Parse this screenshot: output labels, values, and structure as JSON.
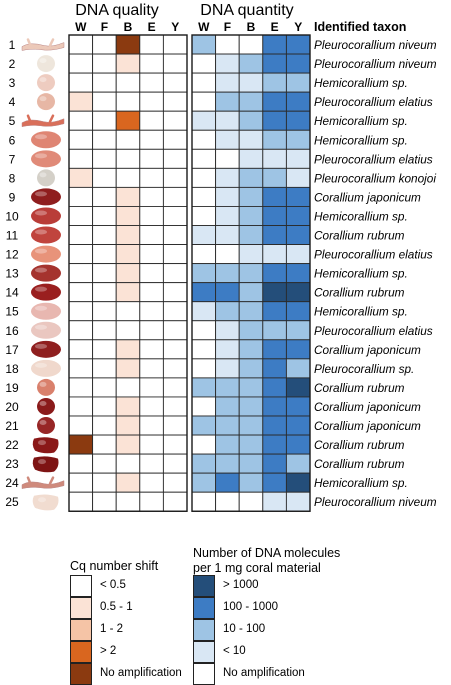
{
  "chart_data": [
    {
      "type": "heatmap",
      "title": "DNA quality",
      "columns": [
        "W",
        "F",
        "B",
        "E",
        "Y"
      ],
      "rows": [
        "1",
        "2",
        "3",
        "4",
        "5",
        "6",
        "7",
        "8",
        "9",
        "10",
        "11",
        "12",
        "13",
        "14",
        "15",
        "16",
        "17",
        "18",
        "19",
        "20",
        "21",
        "22",
        "23",
        "24",
        "25"
      ],
      "values": [
        [
          0,
          0,
          4,
          0,
          0
        ],
        [
          0,
          0,
          1,
          0,
          0
        ],
        [
          0,
          0,
          0,
          0,
          0
        ],
        [
          1,
          0,
          0,
          0,
          0
        ],
        [
          0,
          0,
          3,
          0,
          0
        ],
        [
          0,
          0,
          0,
          0,
          0
        ],
        [
          0,
          0,
          0,
          0,
          0
        ],
        [
          1,
          0,
          0,
          0,
          0
        ],
        [
          0,
          0,
          1,
          0,
          0
        ],
        [
          0,
          0,
          1,
          0,
          0
        ],
        [
          0,
          0,
          1,
          0,
          0
        ],
        [
          0,
          0,
          1,
          0,
          0
        ],
        [
          0,
          0,
          1,
          0,
          0
        ],
        [
          0,
          0,
          1,
          0,
          0
        ],
        [
          0,
          0,
          0,
          0,
          0
        ],
        [
          0,
          0,
          0,
          0,
          0
        ],
        [
          0,
          0,
          1,
          0,
          0
        ],
        [
          0,
          0,
          1,
          0,
          0
        ],
        [
          0,
          0,
          0,
          0,
          0
        ],
        [
          0,
          0,
          1,
          0,
          0
        ],
        [
          0,
          0,
          1,
          0,
          0
        ],
        [
          4,
          0,
          1,
          0,
          0
        ],
        [
          0,
          0,
          0,
          0,
          0
        ],
        [
          0,
          0,
          1,
          0,
          0
        ],
        [
          0,
          0,
          0,
          0,
          0
        ]
      ],
      "value_levels": [
        "< 0.5",
        "0.5 - 1",
        "1 - 2",
        "> 2",
        "No amplification"
      ],
      "colors": [
        "#ffffff",
        "#fbe3d6",
        "#f5c4a6",
        "#d9661f",
        "#8b3a10"
      ],
      "legend_title": "Cq number shift"
    },
    {
      "type": "heatmap",
      "title": "DNA quantity",
      "columns": [
        "W",
        "F",
        "B",
        "E",
        "Y"
      ],
      "rows": [
        "1",
        "2",
        "3",
        "4",
        "5",
        "6",
        "7",
        "8",
        "9",
        "10",
        "11",
        "12",
        "13",
        "14",
        "15",
        "16",
        "17",
        "18",
        "19",
        "20",
        "21",
        "22",
        "23",
        "24",
        "25"
      ],
      "values": [
        [
          2,
          0,
          0,
          3,
          3
        ],
        [
          0,
          1,
          2,
          3,
          3
        ],
        [
          0,
          1,
          1,
          2,
          2
        ],
        [
          0,
          2,
          2,
          3,
          3
        ],
        [
          1,
          1,
          2,
          3,
          3
        ],
        [
          0,
          1,
          1,
          2,
          2
        ],
        [
          0,
          0,
          1,
          1,
          1
        ],
        [
          0,
          1,
          2,
          2,
          1
        ],
        [
          0,
          1,
          2,
          3,
          3
        ],
        [
          0,
          1,
          2,
          3,
          3
        ],
        [
          1,
          1,
          2,
          3,
          3
        ],
        [
          0,
          0,
          1,
          1,
          1
        ],
        [
          2,
          2,
          2,
          3,
          3
        ],
        [
          3,
          3,
          2,
          4,
          4
        ],
        [
          1,
          2,
          2,
          3,
          3
        ],
        [
          0,
          1,
          2,
          2,
          2
        ],
        [
          0,
          1,
          2,
          3,
          3
        ],
        [
          0,
          1,
          2,
          3,
          2
        ],
        [
          2,
          2,
          2,
          3,
          4
        ],
        [
          0,
          2,
          2,
          3,
          3
        ],
        [
          2,
          2,
          2,
          3,
          3
        ],
        [
          0,
          2,
          2,
          3,
          3
        ],
        [
          2,
          2,
          2,
          3,
          2
        ],
        [
          2,
          3,
          2,
          3,
          4
        ],
        [
          0,
          0,
          0,
          1,
          1
        ]
      ],
      "value_levels": [
        "No amplification",
        "< 10",
        "10 - 100",
        "100 - 1000",
        "> 1000"
      ],
      "colors": [
        "#ffffff",
        "#d9e7f4",
        "#9ec4e4",
        "#3d7cc4",
        "#244e7a"
      ],
      "legend_title_lines": [
        "Number of DNA molecules",
        "per 1 mg coral material"
      ]
    }
  ],
  "taxon_header": "Identified taxon",
  "taxa": [
    "Pleurocorallium niveum",
    "Pleurocorallium niveum",
    "Hemicorallium sp.",
    "Pleurocorallium elatius",
    "Hemicorallium sp.",
    "Hemicorallium sp.",
    "Pleurocorallium elatius",
    "Pleurocorallium konojoi",
    "Corallium japonicum",
    "Hemicorallium sp.",
    "Corallium rubrum",
    "Pleurocorallium elatius",
    "Hemicorallium sp.",
    "Corallium rubrum",
    "Hemicorallium sp.",
    "Pleurocorallium elatius",
    "Corallium japonicum",
    "Pleurocorallium sp.",
    "Corallium rubrum",
    "Corallium japonicum",
    "Corallium japonicum",
    "Corallium rubrum",
    "Corallium rubrum",
    "Hemicorallium sp.",
    "Pleurocorallium niveum"
  ],
  "sample_colors": [
    "#ecc9b9",
    "#eee6dc",
    "#eeccc0",
    "#e7b7a5",
    "#d96f5a",
    "#df8573",
    "#e08a78",
    "#d4d0c8",
    "#8f1e1e",
    "#b93d38",
    "#c0443d",
    "#e8937a",
    "#a5332e",
    "#9a1f1f",
    "#e8b7b0",
    "#eac7c0",
    "#8f1f1f",
    "#f0d8cc",
    "#d9806c",
    "#8a1a1a",
    "#972626",
    "#8a1818",
    "#7e1414",
    "#cf8a7c",
    "#f1dcd0"
  ],
  "sample_shapes": [
    "branch",
    "round",
    "round",
    "round",
    "branch",
    "disc",
    "disc",
    "round",
    "disc",
    "disc",
    "disc",
    "disc",
    "disc",
    "disc",
    "disc",
    "disc",
    "disc",
    "disc",
    "round",
    "round",
    "round",
    "chunk",
    "chunk",
    "branch",
    "chunk"
  ]
}
